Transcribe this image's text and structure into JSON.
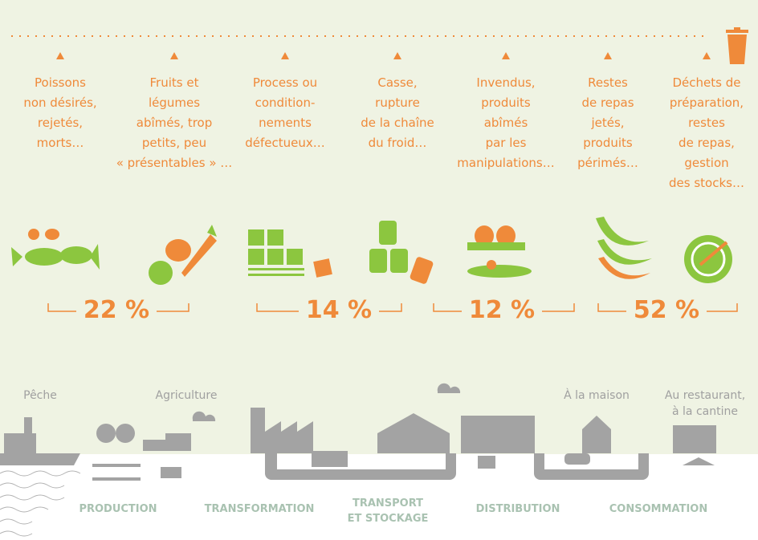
{
  "causes": [
    {
      "lines": [
        "Poissons",
        "non désirés,",
        "rejetés,",
        "morts…"
      ]
    },
    {
      "lines": [
        "Fruits et",
        "légumes",
        "abîmés, trop",
        "petits, peu",
        "« présentables » …"
      ]
    },
    {
      "lines": [
        "Process ou",
        "condition-",
        "nements",
        "défectueux…"
      ]
    },
    {
      "lines": [
        "Casse,",
        "rupture",
        "de la chaîne",
        "du froid…"
      ]
    },
    {
      "lines": [
        "Invendus,",
        "produits",
        "abîmés",
        "par les",
        "manipulations…"
      ]
    },
    {
      "lines": [
        "Restes",
        "de repas",
        "jetés,",
        "produits",
        "périmés…"
      ]
    },
    {
      "lines": [
        "Déchets de",
        "préparation,",
        "restes",
        "de repas,",
        "gestion",
        "des stocks…"
      ]
    }
  ],
  "shares": [
    "22 %",
    "14 %",
    "12 %",
    "52 %"
  ],
  "places": [
    {
      "lines": [
        "Pêche"
      ]
    },
    {
      "lines": [
        "Agriculture"
      ]
    },
    {
      "lines": [
        "À la maison"
      ]
    },
    {
      "lines": [
        "Au restaurant,",
        "à la cantine"
      ]
    }
  ],
  "stages": [
    {
      "lines": [
        "PRODUCTION"
      ]
    },
    {
      "lines": [
        "TRANSFORMATION"
      ]
    },
    {
      "lines": [
        "TRANSPORT",
        "ET STOCKAGE"
      ]
    },
    {
      "lines": [
        "DISTRIBUTION"
      ]
    },
    {
      "lines": [
        "CONSOMMATION"
      ]
    }
  ]
}
